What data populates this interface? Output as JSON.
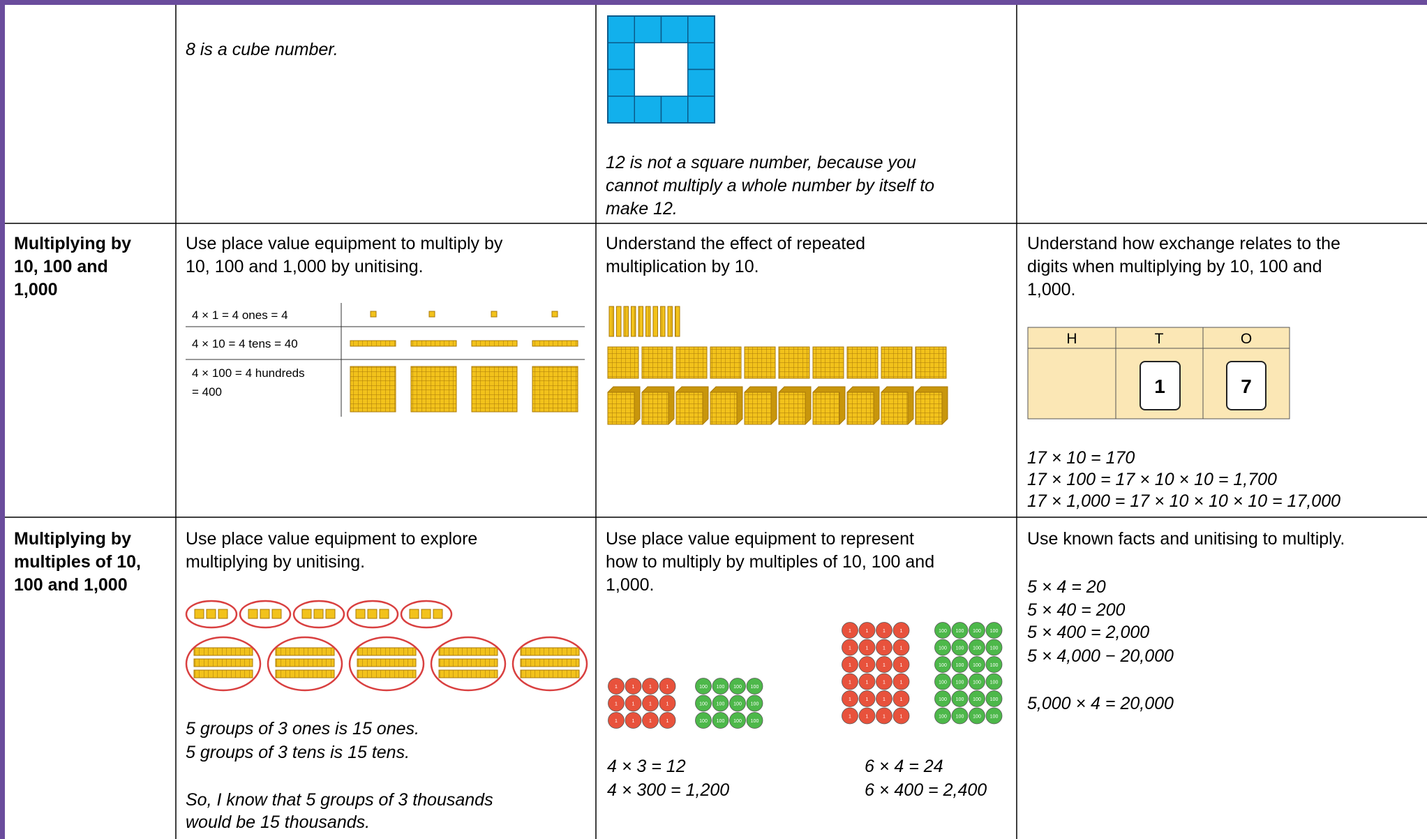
{
  "table": {
    "rows": [
      {
        "col2": {
          "note": "8 is a cube number."
        },
        "col3": {
          "note": [
            "12 is not a square number, because you",
            "cannot multiply a whole number by itself to",
            "make 12."
          ]
        }
      },
      {
        "topic": [
          "Multiplying by",
          "10, 100 and",
          "1,000"
        ],
        "col2": {
          "text": [
            "Use place value equipment to multiply by",
            "10, 100 and 1,000 by unitising."
          ],
          "figure": [
            "4 × 1 = 4 ones = 4",
            "4 × 10 = 4 tens = 40",
            "4 × 100 = 4 hundreds",
            "= 400"
          ]
        },
        "col3": {
          "text": [
            "Understand the effect of repeated",
            "multiplication by 10."
          ]
        },
        "col4": {
          "text": [
            "Understand how exchange relates to the",
            "digits when multiplying by 10, 100 and",
            "1,000."
          ],
          "chart_headers": [
            "H",
            "T",
            "O"
          ],
          "digits": [
            "1",
            "7"
          ],
          "equations": [
            "17 × 10 = 170",
            "17 × 100 = 17 × 10 × 10 = 1,700",
            "17 × 1,000 = 17 × 10 × 10 × 10 = 17,000"
          ]
        }
      },
      {
        "topic": [
          "Multiplying by",
          "multiples of 10,",
          "100 and 1,000"
        ],
        "col2": {
          "text": [
            "Use place value equipment to explore",
            "multiplying by unitising."
          ],
          "notes": [
            "5 groups of 3 ones is 15 ones.",
            "5 groups of 3 tens is 15 tens."
          ],
          "conclusion": [
            "So, I know that 5 groups of 3 thousands",
            "would be 15 thousands."
          ]
        },
        "col3": {
          "text": [
            "Use place value equipment to represent",
            "how to multiply by multiples of 10, 100 and",
            "1,000."
          ],
          "counters": {
            "one": "1",
            "hundred": "100"
          },
          "equations_left": [
            "4 × 3 = 12",
            "4 × 300 = 1,200"
          ],
          "equations_right": [
            "6 × 4 = 24",
            "6 × 400 = 2,400"
          ]
        },
        "col4": {
          "text": [
            "Use known facts and unitising to multiply."
          ],
          "equations": [
            "5 × 4 = 20",
            "5 × 40 = 200",
            "5 × 400 = 2,000",
            "5 × 4,000 − 20,000"
          ],
          "final": "5,000 × 4 = 20,000"
        }
      }
    ]
  }
}
